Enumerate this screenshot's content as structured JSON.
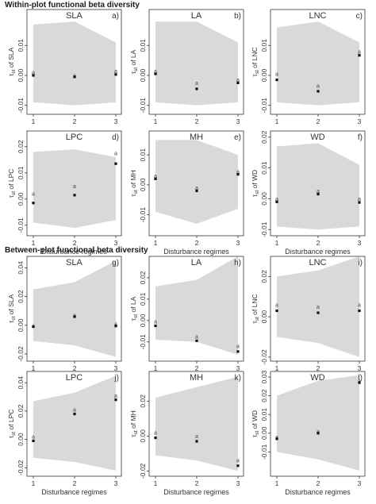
{
  "sections": {
    "within": "Within-plot functional beta diversity",
    "between": "Between-plot functional beta diversity"
  },
  "xlabel": "Disturbance regimes",
  "chart_data": [
    {
      "id": "a",
      "type": "scatter",
      "title": "SLA",
      "ylabel": "τst of SLA",
      "ylim": [
        -0.013,
        0.022
      ],
      "yticks": [
        -0.01,
        0.0,
        0.01
      ],
      "x": [
        1,
        2,
        3
      ],
      "values": [
        0.0,
        -0.0005,
        0.0003
      ],
      "labels": [
        0.001,
        0.0,
        0.0015
      ],
      "band": {
        "upper": [
          0.017,
          0.018,
          0.011
        ],
        "lower": [
          -0.009,
          -0.01,
          -0.009
        ]
      },
      "marker": "a"
    },
    {
      "id": "b",
      "type": "scatter",
      "title": "LA",
      "ylabel": "τst of LA",
      "ylim": [
        -0.013,
        0.022
      ],
      "yticks": [
        -0.01,
        0.0,
        0.01
      ],
      "x": [
        1,
        2,
        3
      ],
      "values": [
        0.0005,
        -0.0045,
        -0.0025
      ],
      "labels": [
        0.0015,
        -0.0025,
        -0.0015
      ],
      "band": {
        "upper": [
          0.018,
          0.018,
          0.011
        ],
        "lower": [
          -0.009,
          -0.01,
          -0.009
        ]
      },
      "marker": "a"
    },
    {
      "id": "c",
      "type": "scatter",
      "title": "LNC",
      "ylabel": "τst of LNC",
      "ylim": [
        -0.013,
        0.022
      ],
      "yticks": [
        -0.01,
        0.0,
        0.01
      ],
      "x": [
        1,
        2,
        3
      ],
      "values": [
        -0.0015,
        -0.0053,
        0.0067
      ],
      "labels": [
        0.0005,
        -0.0035,
        0.008
      ],
      "band": {
        "upper": [
          0.016,
          0.018,
          0.011
        ],
        "lower": [
          -0.009,
          -0.01,
          -0.009
        ]
      },
      "marker": "a"
    },
    {
      "id": "d",
      "type": "scatter",
      "title": "LPC",
      "ylabel": "τst of LPC",
      "ylim": [
        -0.014,
        0.026
      ],
      "yticks": [
        -0.01,
        0.0,
        0.01,
        0.02
      ],
      "x": [
        1,
        2,
        3
      ],
      "values": [
        -0.0015,
        0.0015,
        0.0135
      ],
      "labels": [
        0.002,
        0.005,
        0.0175
      ],
      "band": {
        "upper": [
          0.018,
          0.019,
          0.016
        ],
        "lower": [
          -0.009,
          -0.011,
          -0.008
        ]
      },
      "marker": "a"
    },
    {
      "id": "e",
      "type": "scatter",
      "title": "MH",
      "ylabel": "τst of MH",
      "ylim": [
        -0.017,
        0.018
      ],
      "yticks": [
        -0.01,
        0.0,
        0.01
      ],
      "x": [
        1,
        2,
        3
      ],
      "values": [
        0.002,
        -0.002,
        0.0035
      ],
      "labels": [
        0.003,
        -0.001,
        0.0045
      ],
      "band": {
        "upper": [
          0.015,
          0.015,
          0.01
        ],
        "lower": [
          -0.009,
          -0.013,
          -0.008
        ]
      },
      "marker": "a"
    },
    {
      "id": "f",
      "type": "scatter",
      "title": "WD",
      "ylabel": "τst of WD",
      "ylim": [
        -0.012,
        0.022
      ],
      "yticks": [
        -0.01,
        0.0,
        0.01,
        0.02
      ],
      "x": [
        1,
        2,
        3
      ],
      "values": [
        -0.001,
        0.0015,
        -0.0012
      ],
      "labels": [
        0.0,
        0.0025,
        0.0
      ],
      "band": {
        "upper": [
          0.017,
          0.018,
          0.011
        ],
        "lower": [
          -0.009,
          -0.01,
          -0.009
        ]
      },
      "marker": "a"
    },
    {
      "id": "g",
      "type": "scatter",
      "title": "SLA",
      "ylabel": "τst of SLA",
      "ylim": [
        -0.025,
        0.048
      ],
      "yticks": [
        -0.02,
        0.0,
        0.02,
        0.04
      ],
      "x": [
        1,
        2,
        3
      ],
      "values": [
        -0.001,
        0.006,
        -0.0005
      ],
      "labels": [
        0.0,
        0.007,
        0.001
      ],
      "band": {
        "upper": [
          0.025,
          0.03,
          0.045
        ],
        "lower": [
          -0.011,
          -0.014,
          -0.022
        ]
      },
      "marker": "a"
    },
    {
      "id": "h",
      "type": "scatter",
      "title": "LA",
      "ylabel": "τst of LA",
      "ylim": [
        -0.019,
        0.03
      ],
      "yticks": [
        -0.01,
        0.0,
        0.01,
        0.02
      ],
      "x": [
        1,
        2,
        3
      ],
      "values": [
        -0.0025,
        -0.0095,
        -0.0145
      ],
      "labels": [
        -0.0005,
        -0.0075,
        -0.012
      ],
      "band": {
        "upper": [
          0.016,
          0.019,
          0.03
        ],
        "lower": [
          -0.009,
          -0.01,
          -0.016
        ]
      },
      "marker": "a"
    },
    {
      "id": "i",
      "type": "scatter",
      "title": "LNC",
      "ylabel": "τst of LNC",
      "ylim": [
        -0.022,
        0.03
      ],
      "yticks": [
        -0.02,
        0.0,
        0.02
      ],
      "x": [
        1,
        2,
        3
      ],
      "values": [
        0.003,
        0.002,
        0.003
      ],
      "labels": [
        0.006,
        0.005,
        0.006
      ],
      "band": {
        "upper": [
          0.02,
          0.023,
          0.03
        ],
        "lower": [
          -0.01,
          -0.013,
          -0.02
        ]
      },
      "marker": "a"
    },
    {
      "id": "j",
      "type": "scatter",
      "title": "LPC",
      "ylabel": "τst of LPC",
      "ylim": [
        -0.026,
        0.048
      ],
      "yticks": [
        -0.02,
        0.0,
        0.02,
        0.04
      ],
      "x": [
        1,
        2,
        3
      ],
      "values": [
        -0.001,
        0.018,
        0.028
      ],
      "labels": [
        0.002,
        0.021,
        0.031
      ],
      "band": {
        "upper": [
          0.027,
          0.033,
          0.045
        ],
        "lower": [
          -0.013,
          -0.016,
          -0.022
        ]
      },
      "marker": "a"
    },
    {
      "id": "k",
      "type": "scatter",
      "title": "MH",
      "ylabel": "τst of MH",
      "ylim": [
        -0.023,
        0.037
      ],
      "yticks": [
        -0.02,
        0.0,
        0.02
      ],
      "x": [
        1,
        2,
        3
      ],
      "values": [
        -0.001,
        -0.003,
        -0.017
      ],
      "labels": [
        0.002,
        0.0,
        -0.014
      ],
      "band": {
        "upper": [
          0.022,
          0.028,
          0.034
        ],
        "lower": [
          -0.011,
          -0.014,
          -0.02
        ]
      },
      "marker": "a"
    },
    {
      "id": "l",
      "type": "scatter",
      "title": "WD",
      "ylabel": "τst of WD",
      "ylim": [
        -0.023,
        0.033
      ],
      "yticks": [
        -0.01,
        0.0,
        0.01,
        0.02,
        0.03
      ],
      "x": [
        1,
        2,
        3
      ],
      "values": [
        -0.003,
        0.0,
        0.027
      ],
      "labels": [
        -0.002,
        0.001,
        0.028
      ],
      "band": {
        "upper": [
          0.02,
          0.028,
          0.031
        ],
        "lower": [
          -0.01,
          -0.014,
          -0.02
        ]
      },
      "marker": "a"
    }
  ]
}
